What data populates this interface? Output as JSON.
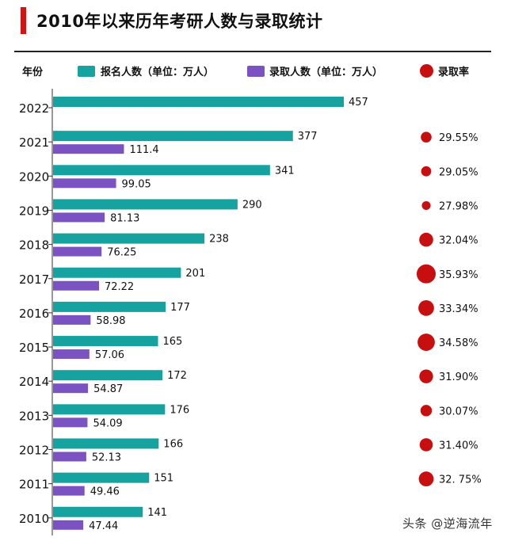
{
  "title": "2010年以来历年考研人数与录取统计",
  "legend": {
    "year_header": "年份",
    "applicants": "报名人数（单位：万人）",
    "admitted": "录取人数（单位：万人）",
    "rate": "录取率"
  },
  "colors": {
    "applicants": "#16a3a0",
    "admitted": "#7b52c1",
    "rate": "#c80f0f",
    "accent": "#d11414"
  },
  "watermark": "头条 @逆海流年",
  "chart_data": {
    "type": "bar",
    "orientation": "horizontal",
    "categories": [
      "2022",
      "2021",
      "2020",
      "2019",
      "2018",
      "2017",
      "2016",
      "2015",
      "2014",
      "2013",
      "2012",
      "2011",
      "2010"
    ],
    "series": [
      {
        "name": "报名人数（单位：万人）",
        "values": [
          457,
          377,
          341,
          290,
          238,
          201,
          177,
          165,
          172,
          176,
          166,
          151,
          141
        ],
        "labels": [
          "457",
          "377",
          "341",
          "290",
          "238",
          "201",
          "177",
          "165",
          "172",
          "176",
          "166",
          "151",
          "141"
        ]
      },
      {
        "name": "录取人数（单位：万人）",
        "values": [
          null,
          111.4,
          99.05,
          81.13,
          76.25,
          72.22,
          58.98,
          57.06,
          54.87,
          54.09,
          52.13,
          49.46,
          47.44
        ],
        "labels": [
          "",
          "111.4",
          "99.05",
          "81.13",
          "76.25",
          "72.22",
          "58.98",
          "57.06",
          "54.87",
          "54.09",
          "52.13",
          "49.46",
          "47.44"
        ]
      },
      {
        "name": "录取率",
        "values": [
          null,
          29.55,
          29.05,
          27.98,
          32.04,
          35.93,
          33.34,
          34.58,
          31.9,
          30.07,
          31.4,
          32.75,
          null
        ],
        "labels": [
          "",
          "29.55%",
          "29.05%",
          "27.98%",
          "32.04%",
          "35.93%",
          "33.34%",
          "34.58%",
          "31.90%",
          "30.07%",
          "31.40%",
          "32. 75%",
          ""
        ]
      }
    ],
    "xlim": [
      0,
      457
    ],
    "grid": false,
    "legend_position": "top"
  }
}
